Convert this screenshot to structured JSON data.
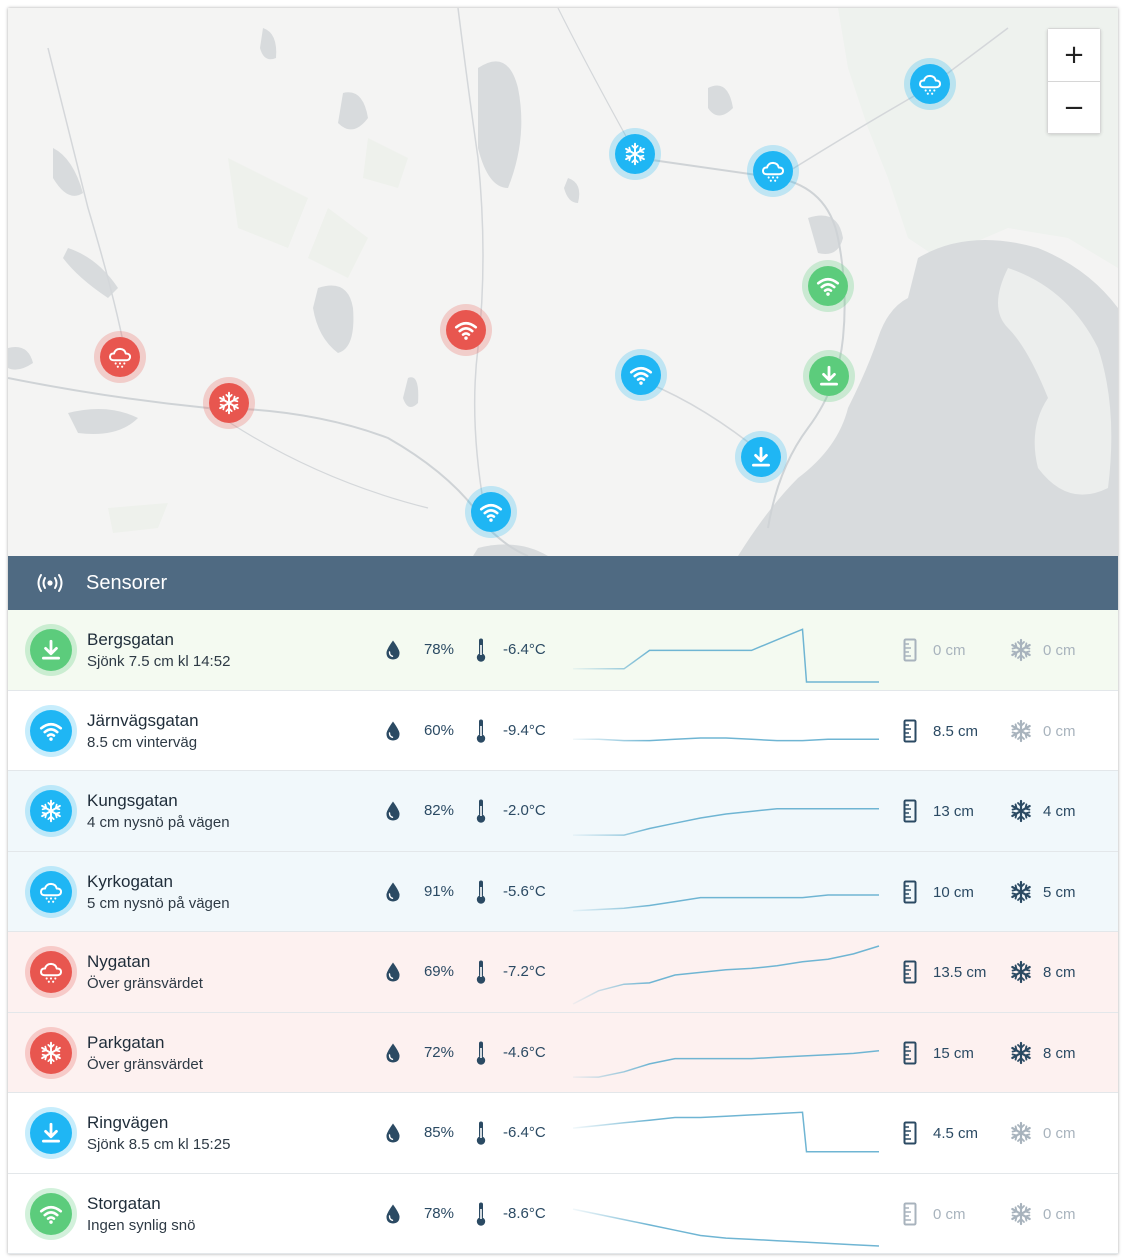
{
  "colors": {
    "green": "#5ccc7c",
    "blue": "#1fb6f4",
    "red": "#e8564f",
    "header": "#4f6a82",
    "text_dark": "#2b4a63",
    "muted": "#a8b3bd"
  },
  "map": {
    "zoom_in_label": "+",
    "zoom_out_label": "−",
    "markers": [
      {
        "icon": "cloud-snow-icon",
        "color": "blue"
      },
      {
        "icon": "snowflake-icon",
        "color": "blue"
      },
      {
        "icon": "cloud-snow-icon",
        "color": "blue"
      },
      {
        "icon": "wifi-icon",
        "color": "green"
      },
      {
        "icon": "wifi-icon",
        "color": "red"
      },
      {
        "icon": "cloud-snow-icon",
        "color": "red"
      },
      {
        "icon": "snowflake-icon",
        "color": "red"
      },
      {
        "icon": "wifi-icon",
        "color": "blue"
      },
      {
        "icon": "download-icon",
        "color": "green"
      },
      {
        "icon": "download-icon",
        "color": "blue"
      },
      {
        "icon": "wifi-icon",
        "color": "blue"
      }
    ]
  },
  "header": {
    "icon": "broadcast-icon",
    "title": "Sensorer"
  },
  "sensors": [
    {
      "name": "Bergsgatan",
      "status": "Sjönk 7.5 cm kl 14:52",
      "icon": "download-icon",
      "color": "green",
      "bg": "green",
      "humidity": "78%",
      "temperature": "-6.4°C",
      "depth": "0 cm",
      "fresh_snow": "0 cm",
      "depth_muted": true,
      "fresh_muted": true,
      "trend": [
        0.5,
        0.5,
        0.5,
        1.2,
        1.2,
        1.2,
        1.2,
        1.2,
        1.6,
        2.0,
        0.0,
        0.0,
        0.0
      ]
    },
    {
      "name": "Järnvägsgatan",
      "status": "8.5 cm vinterväg",
      "icon": "wifi-icon",
      "color": "blue",
      "bg": "white",
      "humidity": "60%",
      "temperature": "-9.4°C",
      "depth": "8.5 cm",
      "fresh_snow": "0 cm",
      "depth_muted": false,
      "fresh_muted": true,
      "trend": [
        0.9,
        0.9,
        0.85,
        0.85,
        0.9,
        0.95,
        0.95,
        0.9,
        0.85,
        0.85,
        0.9,
        0.9,
        0.9
      ]
    },
    {
      "name": "Kungsgatan",
      "status": "4 cm nysnö på vägen",
      "icon": "snowflake-icon",
      "color": "blue",
      "bg": "blue",
      "humidity": "82%",
      "temperature": "-2.0°C",
      "depth": "13 cm",
      "fresh_snow": "4 cm",
      "depth_muted": false,
      "fresh_muted": false,
      "trend": [
        0.3,
        0.3,
        0.3,
        0.55,
        0.75,
        0.95,
        1.1,
        1.2,
        1.3,
        1.3,
        1.3,
        1.3,
        1.3
      ]
    },
    {
      "name": "Kyrkogatan",
      "status": "5 cm nysnö på vägen",
      "icon": "cloud-snow-icon",
      "color": "blue",
      "bg": "blue",
      "humidity": "91%",
      "temperature": "-5.6°C",
      "depth": "10 cm",
      "fresh_snow": "5 cm",
      "depth_muted": false,
      "fresh_muted": false,
      "trend": [
        0.5,
        0.55,
        0.6,
        0.7,
        0.85,
        1.0,
        1.0,
        1.0,
        1.0,
        1.0,
        1.1,
        1.1,
        1.1
      ]
    },
    {
      "name": "Nygatan",
      "status": "Över gränsvärdet",
      "icon": "cloud-snow-icon",
      "color": "red",
      "bg": "red",
      "humidity": "69%",
      "temperature": "-7.2°C",
      "depth": "13.5 cm",
      "fresh_snow": "8 cm",
      "depth_muted": false,
      "fresh_muted": false,
      "trend": [
        0.0,
        0.5,
        0.75,
        0.8,
        1.1,
        1.2,
        1.3,
        1.35,
        1.45,
        1.6,
        1.7,
        1.9,
        2.2
      ]
    },
    {
      "name": "Parkgatan",
      "status": "Över gränsvärdet",
      "icon": "snowflake-icon",
      "color": "red",
      "bg": "red",
      "humidity": "72%",
      "temperature": "-4.6°C",
      "depth": "15 cm",
      "fresh_snow": "8 cm",
      "depth_muted": false,
      "fresh_muted": false,
      "trend": [
        0.3,
        0.3,
        0.5,
        0.8,
        1.0,
        1.0,
        1.0,
        1.0,
        1.05,
        1.1,
        1.15,
        1.2,
        1.3
      ]
    },
    {
      "name": "Ringvägen",
      "status": "Sjönk 8.5 cm kl 15:25",
      "icon": "download-icon",
      "color": "blue",
      "bg": "white",
      "humidity": "85%",
      "temperature": "-6.4°C",
      "depth": "4.5 cm",
      "fresh_snow": "0 cm",
      "depth_muted": false,
      "fresh_muted": true,
      "trend": [
        1.4,
        1.5,
        1.6,
        1.7,
        1.8,
        1.8,
        1.85,
        1.9,
        1.95,
        2.0,
        0.5,
        0.5,
        0.5
      ]
    },
    {
      "name": "Storgatan",
      "status": "Ingen synlig snö",
      "icon": "wifi-icon",
      "color": "green",
      "bg": "white",
      "humidity": "78%",
      "temperature": "-8.6°C",
      "depth": "0 cm",
      "fresh_snow": "0 cm",
      "depth_muted": true,
      "fresh_muted": true,
      "trend": [
        1.4,
        1.2,
        1.0,
        0.8,
        0.6,
        0.4,
        0.3,
        0.25,
        0.2,
        0.15,
        0.1,
        0.05,
        0.0
      ]
    }
  ]
}
